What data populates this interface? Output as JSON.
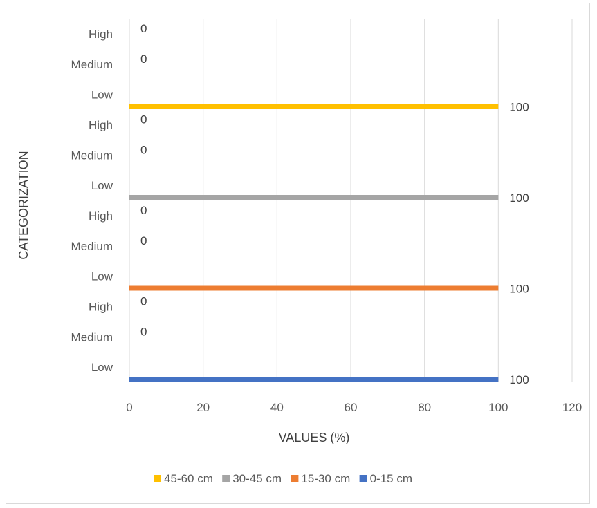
{
  "chart_data": {
    "type": "bar",
    "orientation": "horizontal",
    "xlabel": "VALUES (%)",
    "ylabel": "CATEGORIZATION",
    "xlim": [
      0,
      120
    ],
    "x_ticks": [
      "0",
      "20",
      "40",
      "60",
      "80",
      "100",
      "120"
    ],
    "grid": "vertical",
    "legend_position": "bottom",
    "groups": [
      {
        "name": "0-15 cm",
        "color": "#4472C4",
        "categories": [
          "Low",
          "Medium",
          "High"
        ],
        "values": [
          100,
          0,
          0
        ],
        "labels": [
          "100",
          "0",
          "0"
        ]
      },
      {
        "name": "15-30 cm",
        "color": "#ED7D31",
        "categories": [
          "Low",
          "Medium",
          "High"
        ],
        "values": [
          100,
          0,
          0
        ],
        "labels": [
          "100",
          "0",
          "0"
        ]
      },
      {
        "name": "30-45 cm",
        "color": "#A5A5A5",
        "categories": [
          "Low",
          "Medium",
          "High"
        ],
        "values": [
          100,
          0,
          0
        ],
        "labels": [
          "100",
          "0",
          "0"
        ]
      },
      {
        "name": "45-60 cm",
        "color": "#FFC000",
        "categories": [
          "Low",
          "Medium",
          "High"
        ],
        "values": [
          100,
          0,
          0
        ],
        "labels": [
          "100",
          "0",
          "0"
        ]
      }
    ],
    "legend": [
      {
        "name": "45-60 cm",
        "color": "#FFC000"
      },
      {
        "name": "30-45 cm",
        "color": "#A5A5A5"
      },
      {
        "name": "15-30 cm",
        "color": "#ED7D31"
      },
      {
        "name": "0-15 cm",
        "color": "#4472C4"
      }
    ]
  }
}
